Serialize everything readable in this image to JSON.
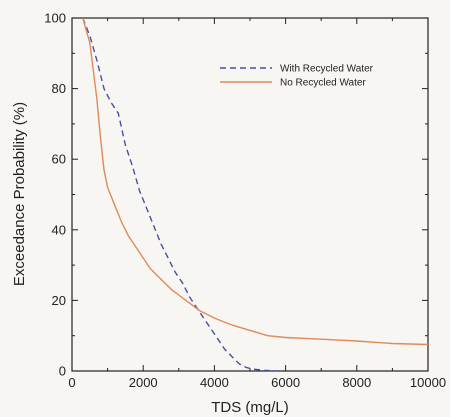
{
  "chart_data": {
    "type": "line",
    "xlabel": "TDS (mg/L)",
    "ylabel": "Exceedance Probability (%)",
    "xlim": [
      0,
      10000
    ],
    "ylim": [
      0,
      100
    ],
    "xticks": [
      0,
      2000,
      4000,
      6000,
      8000,
      10000
    ],
    "yticks": [
      0,
      20,
      40,
      60,
      80,
      100
    ],
    "grid": false,
    "legend_position": "top-right",
    "series": [
      {
        "name": "With Recycled Water",
        "color": "#4a4fa3",
        "style": "dashed",
        "x": [
          300,
          500,
          700,
          900,
          1100,
          1300,
          1500,
          1700,
          1900,
          2100,
          2300,
          2500,
          2700,
          2900,
          3100,
          3300,
          3500,
          3700,
          3900,
          4100,
          4300,
          4500,
          4700,
          4900,
          5100,
          5400,
          5800
        ],
        "y": [
          100,
          95,
          88,
          80,
          76,
          73,
          64,
          58,
          51,
          46,
          41,
          36,
          32,
          28,
          25,
          21,
          18,
          15,
          12,
          9,
          6,
          4,
          2,
          1,
          0.5,
          0.2,
          0
        ]
      },
      {
        "name": "No Recycled Water",
        "color": "#e08a5a",
        "style": "solid",
        "x": [
          300,
          500,
          700,
          800,
          900,
          1000,
          1200,
          1400,
          1600,
          1800,
          2000,
          2200,
          2400,
          2600,
          2800,
          3000,
          3200,
          3400,
          3600,
          3800,
          4000,
          4500,
          5000,
          5500,
          6000,
          7000,
          8000,
          9000,
          10000
        ],
        "y": [
          100,
          93,
          77,
          66,
          57,
          52,
          47,
          42,
          38,
          35,
          32,
          29,
          27,
          25,
          23,
          21.5,
          20,
          18.5,
          17,
          16,
          15,
          13,
          11.5,
          10,
          9.5,
          9,
          8.5,
          7.8,
          7.5
        ]
      }
    ]
  }
}
